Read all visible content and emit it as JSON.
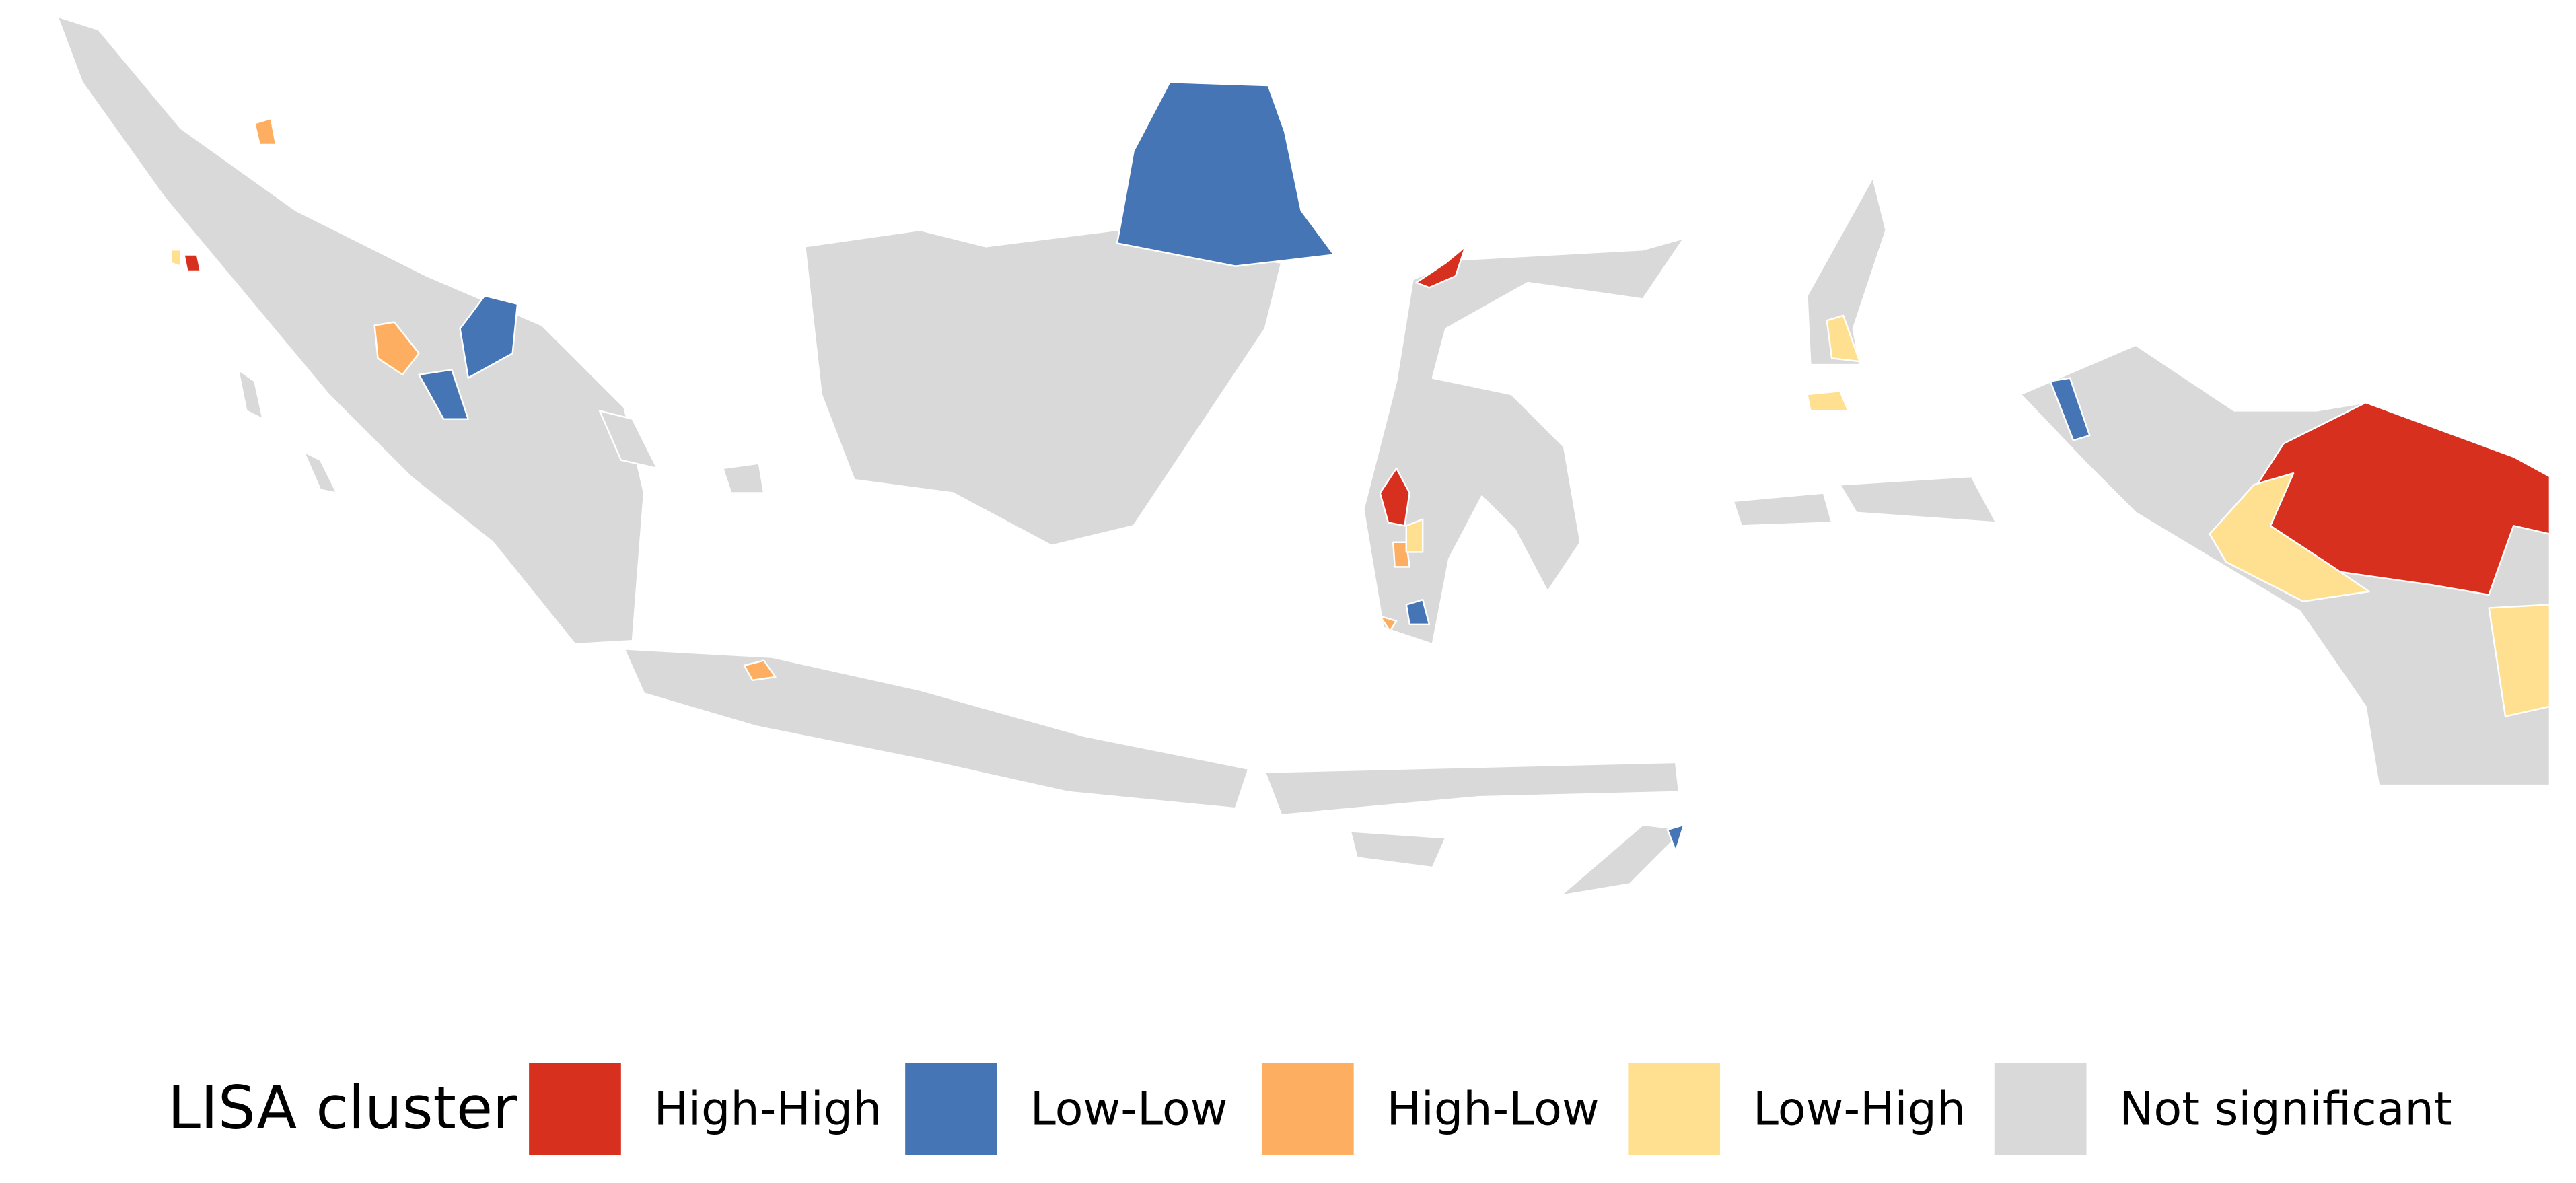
{
  "legend": {
    "title": "LISA cluster",
    "items": [
      {
        "label": "High-High",
        "color": "#d7301f"
      },
      {
        "label": "Low-Low",
        "color": "#4575b4"
      },
      {
        "label": "High-Low",
        "color": "#fdae61"
      },
      {
        "label": "Low-High",
        "color": "#fee090"
      },
      {
        "label": "Not significant",
        "color": "#d9d9d9"
      }
    ]
  }
}
